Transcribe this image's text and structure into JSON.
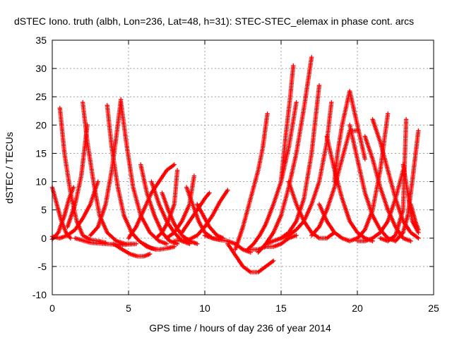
{
  "chart_data": {
    "type": "scatter",
    "title": "dSTEC Iono. truth (albh, Lon=236, Lat=48, h=31): STEC-STEC_elemax in phase cont. arcs",
    "xlabel": "GPS time / hours of day 236 of year 2014",
    "ylabel": "dSTEC  / TECUs",
    "xlim": [
      0,
      25
    ],
    "ylim": [
      -10,
      35
    ],
    "xticks": [
      0,
      5,
      10,
      15,
      20,
      25
    ],
    "yticks": [
      -10,
      -5,
      0,
      5,
      10,
      15,
      20,
      25,
      30,
      35
    ],
    "grid": true,
    "marker": "+",
    "color": "#ff0000",
    "series": [
      {
        "x": [
          0.0,
          0.3,
          0.6,
          0.9,
          1.2
        ],
        "y": [
          9.0,
          6.0,
          3.0,
          1.0,
          0.0
        ]
      },
      {
        "x": [
          0.0,
          0.5,
          1.0,
          1.5,
          2.0,
          2.5,
          2.8,
          3.0
        ],
        "y": [
          0.3,
          0.0,
          0.5,
          1.5,
          3.5,
          6.0,
          8.5,
          10.0
        ]
      },
      {
        "x": [
          0.5,
          0.8,
          1.2,
          1.6,
          2.0,
          2.5,
          3.0,
          3.5
        ],
        "y": [
          23.0,
          15.0,
          8.0,
          3.0,
          0.5,
          -0.3,
          -0.5,
          -0.8
        ]
      },
      {
        "x": [
          0.0,
          0.4,
          0.8,
          1.1,
          1.4
        ],
        "y": [
          -0.2,
          1.0,
          4.0,
          7.0,
          9.0
        ]
      },
      {
        "x": [
          2.0,
          2.3,
          2.7,
          3.1,
          3.6,
          4.2,
          4.8,
          5.3
        ],
        "y": [
          24.0,
          17.0,
          10.0,
          4.0,
          1.0,
          -0.5,
          -1.0,
          -1.0
        ]
      },
      {
        "x": [
          1.0,
          1.5,
          1.9,
          2.3
        ],
        "y": [
          2.0,
          6.0,
          11.0,
          20.0
        ]
      },
      {
        "x": [
          3.6,
          3.9,
          4.3,
          4.7,
          5.2,
          5.7,
          6.2,
          6.8
        ],
        "y": [
          23.5,
          16.0,
          9.0,
          4.0,
          1.0,
          -0.5,
          -1.5,
          -2.0
        ]
      },
      {
        "x": [
          2.5,
          3.0,
          3.5,
          3.9,
          4.2,
          4.5
        ],
        "y": [
          0.5,
          2.0,
          6.0,
          12.0,
          18.0,
          24.5
        ]
      },
      {
        "x": [
          4.5,
          4.9,
          5.3,
          5.8,
          6.4,
          7.0,
          7.5
        ],
        "y": [
          24.0,
          16.0,
          9.0,
          4.0,
          1.0,
          -0.5,
          -1.0
        ]
      },
      {
        "x": [
          1.5,
          2.5,
          3.5,
          4.5,
          5.5
        ],
        "y": [
          0.0,
          -0.8,
          -1.0,
          -1.2,
          -1.0
        ]
      },
      {
        "x": [
          4.0,
          4.6,
          5.1,
          5.6,
          6.0,
          6.4
        ],
        "y": [
          -1.0,
          -2.0,
          -2.8,
          -3.2,
          -3.2,
          -2.8
        ]
      },
      {
        "x": [
          5.0,
          5.5,
          6.0,
          6.5,
          7.0,
          7.5,
          8.0
        ],
        "y": [
          0.0,
          2.0,
          5.0,
          8.0,
          10.0,
          12.0,
          13.0
        ]
      },
      {
        "x": [
          5.8,
          6.2,
          6.7,
          7.2,
          7.7,
          8.2
        ],
        "y": [
          13.0,
          8.0,
          4.0,
          1.0,
          -0.5,
          -1.0
        ]
      },
      {
        "x": [
          6.5,
          7.0,
          7.5,
          8.0,
          8.5,
          9.0
        ],
        "y": [
          10.0,
          6.0,
          3.0,
          1.0,
          -0.5,
          -1.0
        ]
      },
      {
        "x": [
          7.2,
          7.6,
          8.0,
          8.5,
          9.0,
          9.5
        ],
        "y": [
          8.0,
          5.0,
          2.5,
          0.5,
          -0.5,
          -1.0
        ]
      },
      {
        "x": [
          6.0,
          6.5,
          7.0,
          7.5,
          8.0
        ],
        "y": [
          -1.0,
          -1.8,
          -2.0,
          -1.8,
          -1.5
        ]
      },
      {
        "x": [
          6.8,
          7.2,
          7.6,
          8.0,
          8.2
        ],
        "y": [
          0.0,
          1.0,
          3.0,
          6.0,
          12.0
        ]
      },
      {
        "x": [
          7.5,
          8.0,
          8.5,
          9.0,
          9.3
        ],
        "y": [
          0.0,
          1.0,
          3.0,
          6.0,
          11.0
        ]
      },
      {
        "x": [
          8.8,
          9.2,
          9.6,
          10.0,
          10.5,
          11.0
        ],
        "y": [
          9.0,
          6.0,
          3.0,
          1.0,
          0.0,
          -0.3
        ]
      },
      {
        "x": [
          9.5,
          9.9,
          10.3,
          10.8,
          11.2
        ],
        "y": [
          6.0,
          4.0,
          2.0,
          0.5,
          0.0
        ]
      },
      {
        "x": [
          8.0,
          9.0,
          9.5,
          10.0,
          10.5,
          11.0,
          11.5
        ],
        "y": [
          -0.5,
          -0.2,
          0.5,
          2.0,
          4.0,
          6.5,
          8.5
        ]
      },
      {
        "x": [
          10.0,
          10.5,
          11.0,
          11.5,
          12.0,
          12.5,
          13.0
        ],
        "y": [
          0.5,
          0.0,
          -0.3,
          -0.5,
          -1.0,
          -2.0,
          -2.5
        ]
      },
      {
        "x": [
          8.5,
          9.0,
          9.5,
          10.0,
          10.3
        ],
        "y": [
          1.0,
          3.0,
          5.0,
          7.0,
          8.0
        ]
      },
      {
        "x": [
          11.5,
          12.0,
          12.5,
          13.0,
          13.5,
          14.0,
          14.5
        ],
        "y": [
          -1.0,
          -3.0,
          -5.0,
          -6.0,
          -6.0,
          -5.0,
          -4.0
        ]
      },
      {
        "x": [
          12.0,
          12.5,
          13.0,
          13.5,
          13.8,
          14.1
        ],
        "y": [
          -2.0,
          2.0,
          7.0,
          12.0,
          16.0,
          22.0
        ]
      },
      {
        "x": [
          12.8,
          13.2,
          13.6,
          14.0,
          14.5,
          15.0,
          15.5,
          16.0
        ],
        "y": [
          -2.0,
          -1.0,
          0.5,
          2.5,
          6.0,
          10.0,
          16.0,
          24.0
        ]
      },
      {
        "x": [
          13.5,
          14.0,
          14.5,
          15.0,
          15.5,
          16.0,
          16.5,
          17.0
        ],
        "y": [
          -2.5,
          -1.0,
          1.0,
          4.0,
          9.0,
          15.0,
          23.0,
          32.0
        ]
      },
      {
        "x": [
          13.0,
          13.5,
          14.0,
          14.5,
          15.0,
          15.5,
          16.0
        ],
        "y": [
          -2.0,
          -2.0,
          -1.5,
          -1.5,
          -1.0,
          0.0,
          0.5
        ]
      },
      {
        "x": [
          14.0,
          14.5,
          15.0,
          15.5,
          16.0,
          16.5,
          17.0,
          17.5
        ],
        "y": [
          -1.0,
          -0.5,
          0.0,
          1.0,
          3.0,
          7.0,
          15.0,
          27.0
        ]
      },
      {
        "x": [
          15.0,
          15.5,
          16.0,
          16.5,
          17.0,
          17.5,
          18.0,
          18.3
        ],
        "y": [
          0.0,
          0.5,
          1.5,
          3.0,
          6.0,
          10.0,
          17.0,
          24.0
        ]
      },
      {
        "x": [
          17.0,
          17.5,
          18.0,
          18.5,
          19.0,
          19.5,
          20.0
        ],
        "y": [
          0.5,
          2.0,
          5.0,
          9.0,
          14.0,
          19.0,
          19.0
        ]
      },
      {
        "x": [
          18.5,
          18.7,
          19.0,
          19.5,
          20.0,
          20.5
        ],
        "y": [
          10.0,
          15.0,
          20.0,
          26.0,
          20.0,
          14.0
        ]
      },
      {
        "x": [
          17.5,
          18.0,
          18.5,
          19.0,
          19.5,
          20.0,
          20.5,
          21.0,
          21.5,
          22.0
        ],
        "y": [
          6.0,
          3.0,
          1.0,
          0.0,
          -0.5,
          0.0,
          1.5,
          5.0,
          12.0,
          22.0
        ]
      },
      {
        "x": [
          18.0,
          18.5,
          19.0,
          19.5,
          20.0,
          20.5,
          21.0
        ],
        "y": [
          18.0,
          12.0,
          7.0,
          3.0,
          1.0,
          0.0,
          -0.5
        ]
      },
      {
        "x": [
          19.5,
          20.0,
          20.5,
          21.0,
          21.5,
          22.0,
          22.5
        ],
        "y": [
          20.0,
          14.0,
          8.0,
          4.0,
          1.5,
          0.0,
          -0.5
        ]
      },
      {
        "x": [
          20.5,
          21.0,
          21.5,
          22.0,
          22.5,
          23.0,
          23.5
        ],
        "y": [
          18.0,
          14.0,
          9.0,
          5.0,
          2.0,
          0.0,
          -0.5
        ]
      },
      {
        "x": [
          21.0,
          21.5,
          22.0,
          22.5,
          23.0,
          23.5,
          24.0
        ],
        "y": [
          21.0,
          17.0,
          12.0,
          7.0,
          3.0,
          1.0,
          0.0
        ]
      },
      {
        "x": [
          20.0,
          20.5,
          21.0,
          21.5,
          22.0,
          22.5,
          23.0
        ],
        "y": [
          -0.5,
          -0.5,
          0.0,
          1.0,
          3.0,
          7.0,
          12.0
        ]
      },
      {
        "x": [
          21.5,
          22.0,
          22.5,
          23.0,
          23.2
        ],
        "y": [
          0.0,
          -0.5,
          0.5,
          5.0,
          21.0
        ]
      },
      {
        "x": [
          22.5,
          23.0,
          23.3,
          23.6,
          24.0
        ],
        "y": [
          -0.5,
          1.0,
          4.0,
          10.0,
          19.0
        ]
      },
      {
        "x": [
          23.0,
          23.3,
          23.6,
          24.0
        ],
        "y": [
          13.0,
          8.0,
          3.0,
          1.0
        ]
      },
      {
        "x": [
          23.5,
          23.8,
          24.0
        ],
        "y": [
          6.0,
          3.0,
          1.5
        ]
      },
      {
        "x": [
          15.5,
          16.0,
          16.5,
          17.0,
          17.5,
          18.0,
          18.5
        ],
        "y": [
          10.0,
          6.0,
          3.0,
          1.0,
          0.0,
          0.0,
          1.0
        ]
      },
      {
        "x": [
          15.0,
          15.3,
          15.6,
          15.8
        ],
        "y": [
          10.0,
          18.0,
          25.0,
          30.5
        ]
      }
    ]
  }
}
